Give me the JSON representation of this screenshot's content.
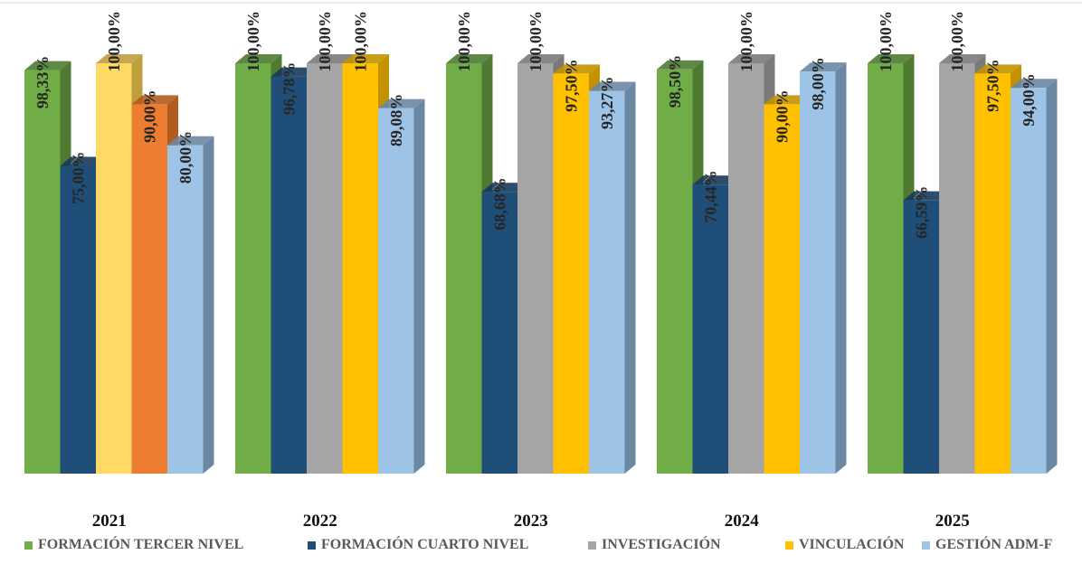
{
  "chart_data": {
    "type": "bar",
    "categories": [
      "2021",
      "2022",
      "2023",
      "2024",
      "2025"
    ],
    "series": [
      {
        "name": "FORMACIÓN TERCER NIVEL",
        "color": "#70AD47",
        "side": "#4E7A31",
        "values": [
          98.33,
          100.0,
          100.0,
          98.5,
          100.0
        ],
        "labels": [
          "98,33%",
          "100,00%",
          "100,00%",
          "98,50%",
          "100,00%"
        ]
      },
      {
        "name": "FORMACIÓN CUARTO NIVEL",
        "color": "#1F4E79",
        "side": "#163A5A",
        "values": [
          75.0,
          96.78,
          68.68,
          70.44,
          66.59
        ],
        "labels": [
          "75,00%",
          "96,78%",
          "68,68%",
          "70,44%",
          "66,59%"
        ]
      },
      {
        "name": "INVESTIGACIÓN",
        "color": "#A5A5A5",
        "side": "#7A7A7A",
        "values": [
          100.0,
          100.0,
          100.0,
          100.0,
          100.0
        ],
        "labels": [
          "100,00%",
          "100,00%",
          "100,00%",
          "100,00%",
          "100,00%"
        ]
      },
      {
        "name": "VINCULACIÓN",
        "color": "#FFC000",
        "side": "#C49200",
        "values": [
          90.0,
          100.0,
          97.5,
          90.0,
          97.5
        ],
        "labels": [
          "90,00%",
          "100,00%",
          "97,50%",
          "90,00%",
          "97,50%"
        ]
      },
      {
        "name": "GESTIÓN ADM-F",
        "color": "#9DC3E6",
        "side": "#6A87A3",
        "values": [
          80.0,
          89.08,
          93.27,
          98.0,
          94.0
        ],
        "labels": [
          "80,00%",
          "89,08%",
          "93,27%",
          "98,00%",
          "94,00%"
        ]
      }
    ],
    "overrides": {
      "2021": {
        "bars": [
          {
            "series": "FORMACIÓN TERCER NIVEL",
            "value": 98.33,
            "label": "98,33%",
            "color": "#70AD47",
            "side": "#4E7A31"
          },
          {
            "series": "FORMACIÓN CUARTO NIVEL",
            "value": 75.0,
            "label": "75,00%",
            "color": "#1F4E79",
            "side": "#163A5A"
          },
          {
            "series": "INVESTIGACIÓN",
            "value": 100.0,
            "label": "100,00%",
            "color": "#FFD966",
            "side": "#BF9F3C"
          },
          {
            "series": "VINCULACIÓN",
            "value": 90.0,
            "label": "90,00%",
            "color": "#ED7D31",
            "side": "#B35A1E"
          },
          {
            "series": "GESTIÓN ADM-F",
            "value": 80.0,
            "label": "80,00%",
            "color": "#9DC3E6",
            "side": "#6A87A3"
          }
        ]
      }
    },
    "ylim": [
      0,
      100
    ],
    "grid": false,
    "legend_position": "bottom",
    "title": "",
    "xlabel": "",
    "ylabel": ""
  }
}
